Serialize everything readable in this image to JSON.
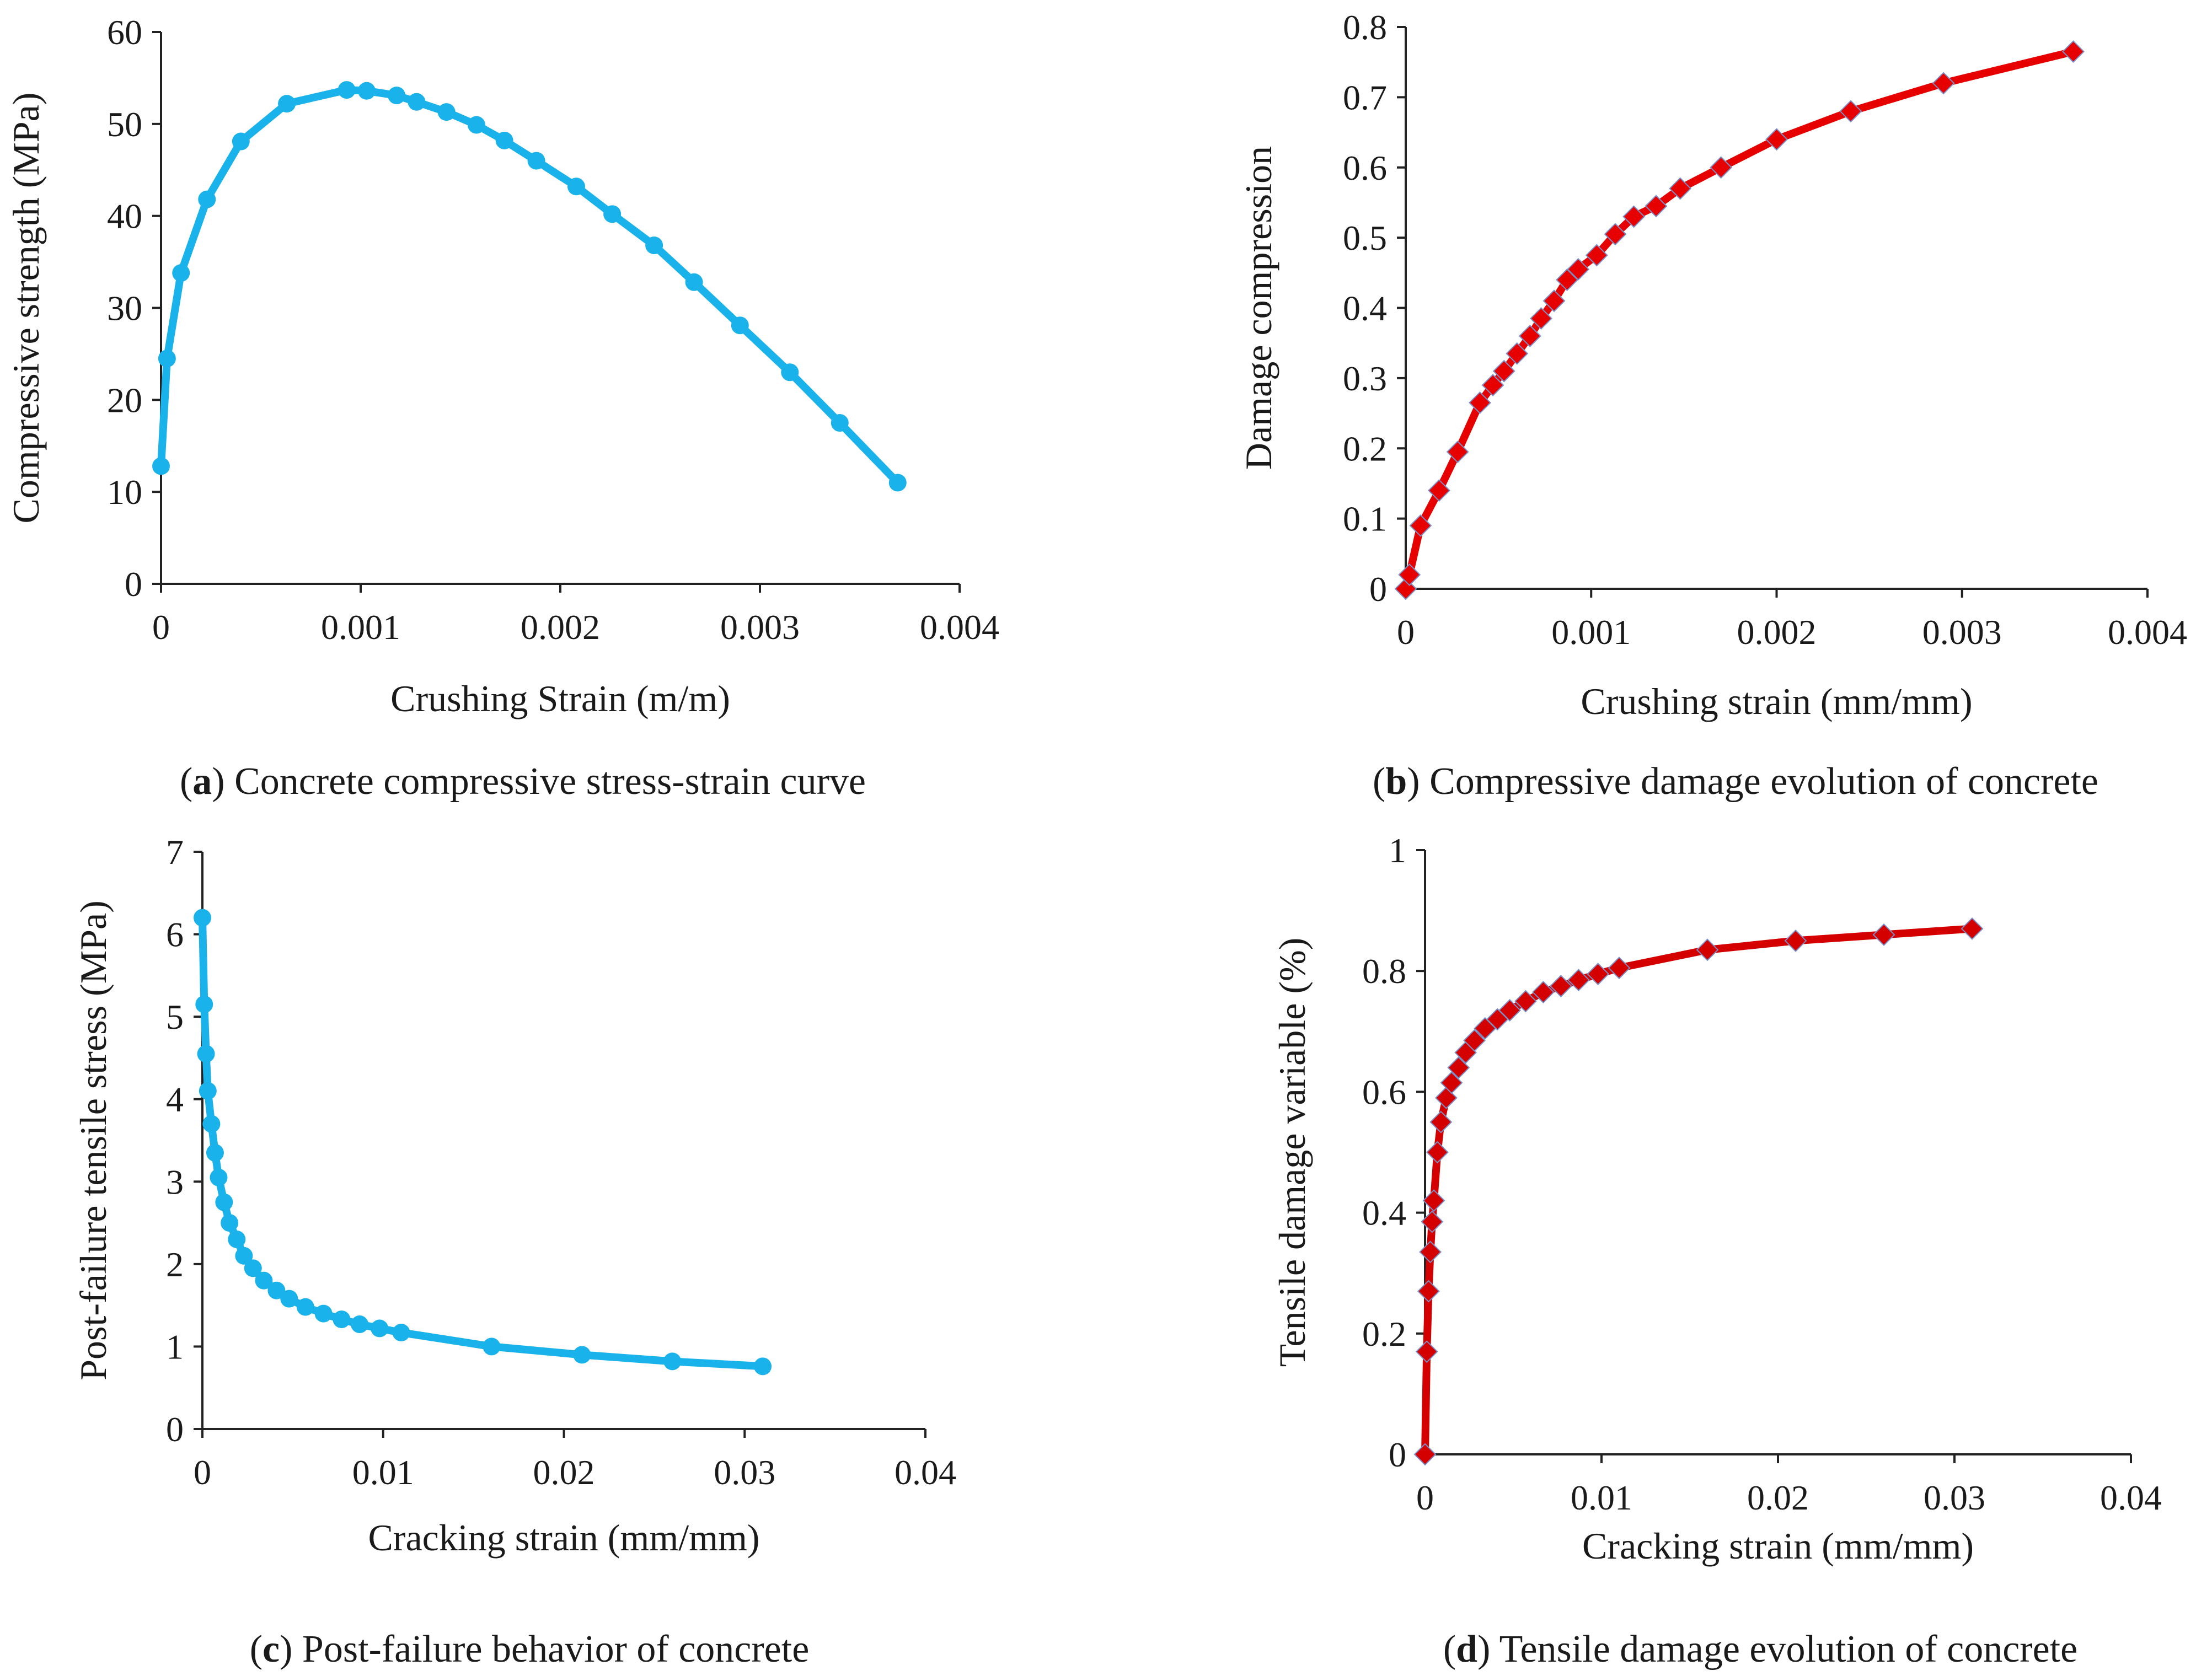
{
  "captions": [
    {
      "letter": "a",
      "text": " Concrete compressive stress-strain curve"
    },
    {
      "letter": "b",
      "text": " Compressive damage evolution of concrete"
    },
    {
      "letter": "c",
      "text": " Post-failure behavior of concrete"
    },
    {
      "letter": "d",
      "text": " Tensile damage evolution of concrete"
    }
  ],
  "chart_data": [
    {
      "id": "a",
      "type": "line",
      "title": "",
      "xlabel": "Crushing Strain (m/m)",
      "ylabel": "Compressive strength (MPa)",
      "xlim": [
        0,
        0.004
      ],
      "ylim": [
        0,
        60
      ],
      "xticks": [
        0,
        0.001,
        0.002,
        0.003,
        0.004
      ],
      "xtick_labels": [
        "0",
        "0.001",
        "0.002",
        "0.003",
        "0.004"
      ],
      "yticks": [
        0,
        10,
        20,
        30,
        40,
        50,
        60
      ],
      "ytick_labels": [
        "0",
        "10",
        "20",
        "30",
        "40",
        "50",
        "60"
      ],
      "color": "#1ab2ea",
      "marker": "circle",
      "series": [
        {
          "name": "Compressive stress-strain",
          "x": [
            0,
            3e-05,
            0.0001,
            0.00023,
            0.0004,
            0.00063,
            0.00093,
            0.00103,
            0.00118,
            0.00128,
            0.00143,
            0.00158,
            0.00172,
            0.00188,
            0.00208,
            0.00226,
            0.00247,
            0.00267,
            0.0029,
            0.00315,
            0.0034,
            0.00369
          ],
          "y": [
            12.8,
            24.5,
            33.8,
            41.8,
            48.1,
            52.2,
            53.7,
            53.6,
            53.1,
            52.4,
            51.3,
            49.9,
            48.2,
            46.0,
            43.2,
            40.2,
            36.8,
            32.8,
            28.1,
            23.0,
            17.5,
            11.0
          ]
        }
      ]
    },
    {
      "id": "b",
      "type": "line",
      "title": "",
      "xlabel": "Crushing strain (mm/mm)",
      "ylabel": "Damage compression",
      "xlim": [
        0,
        0.004
      ],
      "ylim": [
        0,
        0.8
      ],
      "xticks": [
        0,
        0.001,
        0.002,
        0.003,
        0.004
      ],
      "xtick_labels": [
        "0",
        "0.001",
        "0.002",
        "0.003",
        "0.004"
      ],
      "yticks": [
        0,
        0.1,
        0.2,
        0.3,
        0.4,
        0.5,
        0.6,
        0.7,
        0.8
      ],
      "ytick_labels": [
        "0",
        "0.1",
        "0.2",
        "0.3",
        "0.4",
        "0.5",
        "0.6",
        "0.7",
        "0.8"
      ],
      "color": "#e60000",
      "marker": "diamond",
      "series": [
        {
          "name": "Compressive damage",
          "x": [
            0,
            2e-05,
            8e-05,
            0.00018,
            0.00028,
            0.0004,
            0.00047,
            0.00053,
            0.0006,
            0.00067,
            0.00073,
            0.0008,
            0.00087,
            0.00093,
            0.00103,
            0.00113,
            0.00123,
            0.00135,
            0.00148,
            0.0017,
            0.002,
            0.0024,
            0.0029,
            0.0036
          ],
          "y": [
            0,
            0.02,
            0.09,
            0.14,
            0.195,
            0.265,
            0.29,
            0.31,
            0.335,
            0.36,
            0.385,
            0.41,
            0.44,
            0.455,
            0.475,
            0.505,
            0.53,
            0.545,
            0.57,
            0.6,
            0.64,
            0.68,
            0.72,
            0.765
          ]
        }
      ]
    },
    {
      "id": "c",
      "type": "line",
      "title": "",
      "xlabel": "Cracking strain (mm/mm)",
      "ylabel": "Post-failure tensile stress (MPa)",
      "xlim": [
        0,
        0.04
      ],
      "ylim": [
        0,
        7
      ],
      "xticks": [
        0,
        0.01,
        0.02,
        0.03,
        0.04
      ],
      "xtick_labels": [
        "0",
        "0.01",
        "0.02",
        "0.03",
        "0.04"
      ],
      "yticks": [
        0,
        1,
        2,
        3,
        4,
        5,
        6,
        7
      ],
      "ytick_labels": [
        "0",
        "1",
        "2",
        "3",
        "4",
        "5",
        "6",
        "7"
      ],
      "color": "#1ab2ea",
      "marker": "circle",
      "series": [
        {
          "name": "Post-failure tensile stress",
          "x": [
            0,
            0.0001,
            0.0002,
            0.0003,
            0.0005,
            0.0007,
            0.0009,
            0.0012,
            0.0015,
            0.0019,
            0.0023,
            0.0028,
            0.0034,
            0.0041,
            0.0048,
            0.0057,
            0.0067,
            0.0077,
            0.0087,
            0.0098,
            0.011,
            0.016,
            0.021,
            0.026,
            0.031
          ],
          "y": [
            6.2,
            5.15,
            4.55,
            4.1,
            3.7,
            3.35,
            3.05,
            2.75,
            2.5,
            2.3,
            2.1,
            1.95,
            1.8,
            1.68,
            1.58,
            1.48,
            1.4,
            1.33,
            1.27,
            1.22,
            1.17,
            1.0,
            0.9,
            0.82,
            0.76
          ]
        }
      ]
    },
    {
      "id": "d",
      "type": "line",
      "title": "",
      "xlabel": "Cracking strain (mm/mm)",
      "ylabel": "Tensile damage variable (%)",
      "xlim": [
        0,
        0.04
      ],
      "ylim": [
        0,
        1
      ],
      "xticks": [
        0,
        0.01,
        0.02,
        0.03,
        0.04
      ],
      "xtick_labels": [
        "0",
        "0.01",
        "0.02",
        "0.03",
        "0.04"
      ],
      "yticks": [
        0,
        0.2,
        0.4,
        0.6,
        0.8,
        1
      ],
      "ytick_labels": [
        "0",
        "0.2",
        "0.4",
        "0.6",
        "0.8",
        "1"
      ],
      "color": "#d40000",
      "marker": "diamond",
      "series": [
        {
          "name": "Tensile damage",
          "x": [
            0,
            0.0001,
            0.0002,
            0.0003,
            0.0004,
            0.0005,
            0.0007,
            0.0009,
            0.0012,
            0.0015,
            0.0019,
            0.0023,
            0.0028,
            0.0034,
            0.0041,
            0.0048,
            0.0057,
            0.0067,
            0.0077,
            0.0087,
            0.0098,
            0.011,
            0.016,
            0.021,
            0.026,
            0.031
          ],
          "y": [
            0,
            0.17,
            0.27,
            0.335,
            0.385,
            0.42,
            0.5,
            0.55,
            0.59,
            0.615,
            0.64,
            0.665,
            0.685,
            0.705,
            0.72,
            0.735,
            0.75,
            0.765,
            0.775,
            0.785,
            0.795,
            0.805,
            0.835,
            0.85,
            0.86,
            0.87
          ]
        }
      ]
    }
  ]
}
